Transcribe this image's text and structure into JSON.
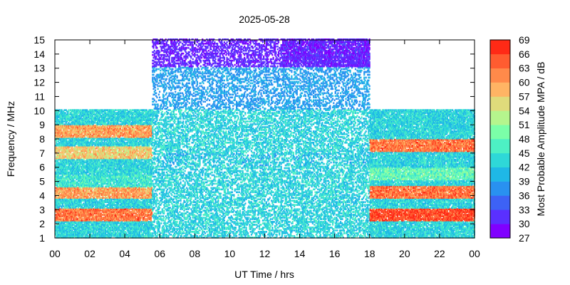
{
  "chart_data": {
    "type": "heatmap",
    "title": "2025-05-28",
    "xlabel": "UT Time / hrs",
    "ylabel": "Frequency / MHz",
    "colorbar_label": "Most Probable Amplitude MPA / dB",
    "xlim": [
      0,
      24
    ],
    "ylim": [
      1,
      15
    ],
    "x_ticks": [
      "00",
      "02",
      "04",
      "06",
      "08",
      "10",
      "12",
      "14",
      "16",
      "18",
      "20",
      "22",
      "00"
    ],
    "y_ticks": [
      "1",
      "2",
      "3",
      "4",
      "5",
      "6",
      "7",
      "8",
      "9",
      "10",
      "11",
      "12",
      "13",
      "14",
      "15"
    ],
    "colorbar_range": [
      27,
      69
    ],
    "colorbar_ticks": [
      "27",
      "30",
      "33",
      "36",
      "39",
      "42",
      "45",
      "48",
      "51",
      "54",
      "57",
      "60",
      "63",
      "66",
      "69"
    ],
    "colorbar_colors": [
      "#8000ff",
      "#5a30ff",
      "#3d62f5",
      "#2991f0",
      "#1fb8e6",
      "#2ed8d8",
      "#4df0c4",
      "#7bffa8",
      "#b5f58d",
      "#dfdb7b",
      "#ffb464",
      "#ff8a4a",
      "#ff5c30",
      "#ff2a16"
    ],
    "coverage": [
      {
        "x_range": [
          0,
          5.5
        ],
        "f_range": [
          1,
          10
        ]
      },
      {
        "x_range": [
          5.5,
          18
        ],
        "f_range": [
          1,
          15
        ]
      },
      {
        "x_range": [
          18,
          24
        ],
        "f_range": [
          1,
          10
        ]
      }
    ],
    "bands": [
      {
        "x_range": [
          0,
          5.5
        ],
        "f_center": 4.2,
        "value_db": 60
      },
      {
        "x_range": [
          0,
          5.5
        ],
        "f_center": 2.6,
        "value_db": 63
      },
      {
        "x_range": [
          0,
          5.5
        ],
        "f_center": 5.0,
        "value_db": 45
      },
      {
        "x_range": [
          0,
          5.5
        ],
        "f_center": 7.0,
        "value_db": 57
      },
      {
        "x_range": [
          0,
          5.5
        ],
        "f_center": 8.5,
        "value_db": 60
      },
      {
        "x_range": [
          5.5,
          18
        ],
        "f_center": 6.5,
        "value_db": 42
      },
      {
        "x_range": [
          13,
          18
        ],
        "f_center": 14.3,
        "value_db": 30
      },
      {
        "x_range": [
          18,
          24
        ],
        "f_center": 2.6,
        "value_db": 66
      },
      {
        "x_range": [
          18,
          24
        ],
        "f_center": 4.2,
        "value_db": 63
      },
      {
        "x_range": [
          18,
          24
        ],
        "f_center": 7.5,
        "value_db": 63
      },
      {
        "x_range": [
          18,
          24
        ],
        "f_center": 5.5,
        "value_db": 48
      }
    ]
  }
}
